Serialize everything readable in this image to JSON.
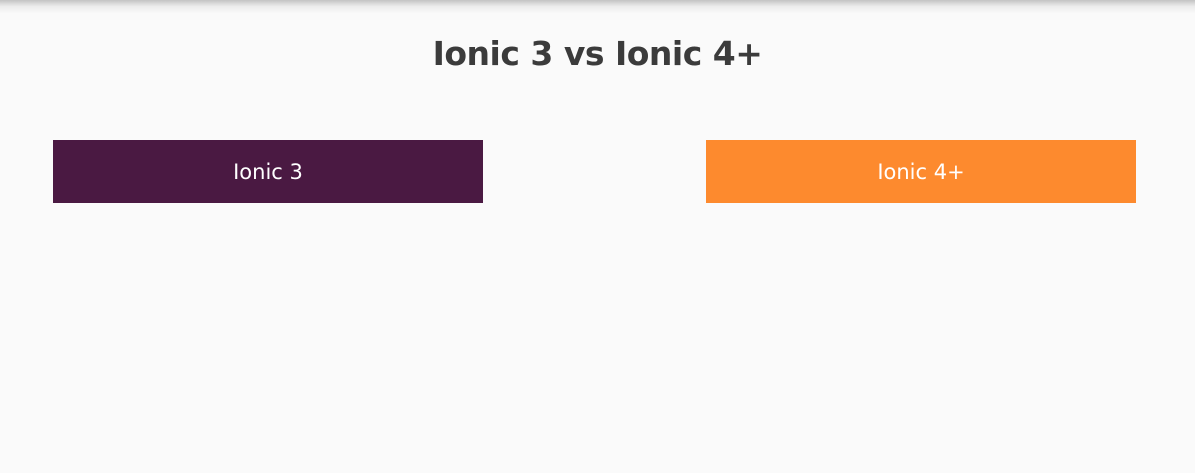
{
  "slide": {
    "title": "Ionic 3 vs Ionic 4+",
    "left_box": {
      "label": "Ionic 3",
      "color": "#4a1942"
    },
    "right_box": {
      "label": "Ionic 4+",
      "color": "#fd8a2e"
    }
  }
}
